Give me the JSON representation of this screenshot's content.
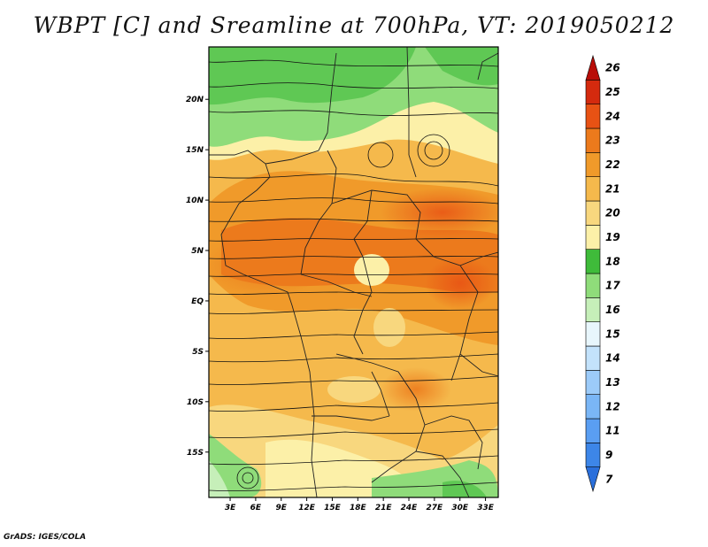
{
  "title": "WBPT [C] and Sreamline at 700hPa, VT: 2019050212",
  "credit": "GrADS: IGES/COLA",
  "map": {
    "lat_labels": [
      "20N",
      "15N",
      "10N",
      "5N",
      "EQ",
      "5S",
      "10S",
      "15S"
    ],
    "lat_values": [
      20,
      15,
      10,
      5,
      0,
      -5,
      -10,
      -15
    ],
    "lon_labels": [
      "3E",
      "6E",
      "9E",
      "12E",
      "15E",
      "18E",
      "21E",
      "24E",
      "27E",
      "30E",
      "33E"
    ],
    "lon_values": [
      3,
      6,
      9,
      12,
      15,
      18,
      21,
      24,
      27,
      30,
      33
    ],
    "lon_range": [
      0.5,
      34.5
    ],
    "lat_range": [
      -19.5,
      25.2
    ],
    "field": "Wet-bulb potential temperature (C) with 700hPa streamlines"
  },
  "colorbar": {
    "labels": [
      "7",
      "9",
      "11",
      "12",
      "13",
      "14",
      "15",
      "16",
      "17",
      "18",
      "19",
      "20",
      "21",
      "22",
      "23",
      "24",
      "25",
      "26"
    ],
    "colors": [
      "#2a6fdb",
      "#3d86e8",
      "#5a9ef2",
      "#7ab6f6",
      "#9ccbf9",
      "#c3e2fb",
      "#e8f6fc",
      "#c6efb9",
      "#8fdc7a",
      "#3fbb3a",
      "#fcf0a8",
      "#f8d77e",
      "#f5b94c",
      "#f09a2a",
      "#ec7a1c",
      "#e85214",
      "#d42a0e",
      "#b80d08"
    ]
  }
}
